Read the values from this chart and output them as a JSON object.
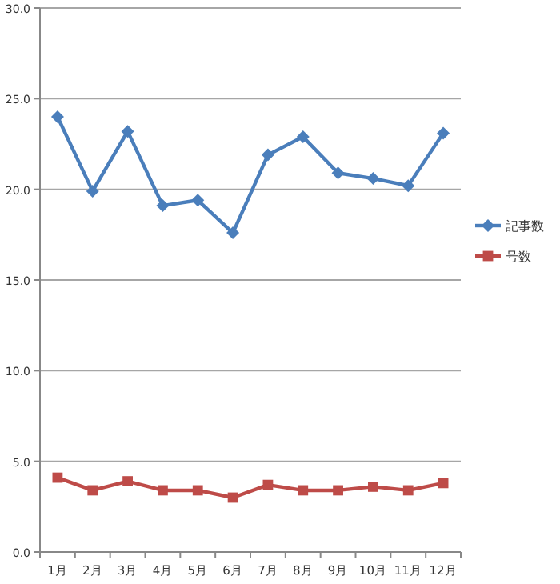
{
  "chart_data": {
    "type": "line",
    "categories": [
      "1月",
      "2月",
      "3月",
      "4月",
      "5月",
      "6月",
      "7月",
      "8月",
      "9月",
      "10月",
      "11月",
      "12月"
    ],
    "series": [
      {
        "name": "記事数",
        "color": "#4a7ebb",
        "marker": "diamond",
        "values": [
          24.0,
          19.9,
          23.2,
          19.1,
          19.4,
          17.6,
          21.9,
          22.9,
          20.9,
          20.6,
          20.2,
          23.1
        ]
      },
      {
        "name": "号数",
        "color": "#be4b48",
        "marker": "square",
        "values": [
          4.1,
          3.4,
          3.9,
          3.4,
          3.4,
          3.0,
          3.7,
          3.4,
          3.4,
          3.6,
          3.4,
          3.8
        ]
      }
    ],
    "ylim": [
      0,
      30
    ],
    "yticks": [
      {
        "value": 0,
        "label": "0.0"
      },
      {
        "value": 5,
        "label": "5.0"
      },
      {
        "value": 10,
        "label": "10.0"
      },
      {
        "value": 15,
        "label": "15.0"
      },
      {
        "value": 20,
        "label": "20.0"
      },
      {
        "value": 25,
        "label": "25.0"
      },
      {
        "value": 30,
        "label": "30.0"
      }
    ],
    "grid": "y",
    "legend": "right"
  }
}
